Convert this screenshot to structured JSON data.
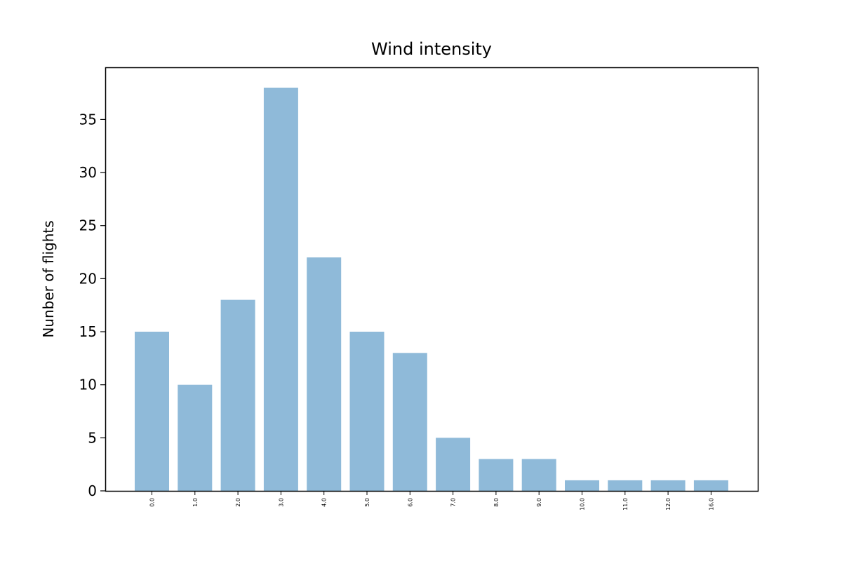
{
  "chart_data": {
    "type": "bar",
    "title": "Wind intensity",
    "xlabel": "",
    "ylabel": "Nunber of flights",
    "categories": [
      "0.0",
      "1.0",
      "2.0",
      "3.0",
      "4.0",
      "5.0",
      "6.0",
      "7.0",
      "8.0",
      "9.0",
      "10.0",
      "11.0",
      "12.0",
      "16.0"
    ],
    "values": [
      15,
      10,
      18,
      38,
      22,
      15,
      13,
      5,
      3,
      3,
      1,
      1,
      1,
      1
    ],
    "ylim": [
      0,
      40
    ],
    "yticks": [
      0,
      5,
      10,
      15,
      20,
      25,
      30,
      35
    ],
    "bar_color": "#8fbad9",
    "grid": false,
    "legend": "none"
  }
}
